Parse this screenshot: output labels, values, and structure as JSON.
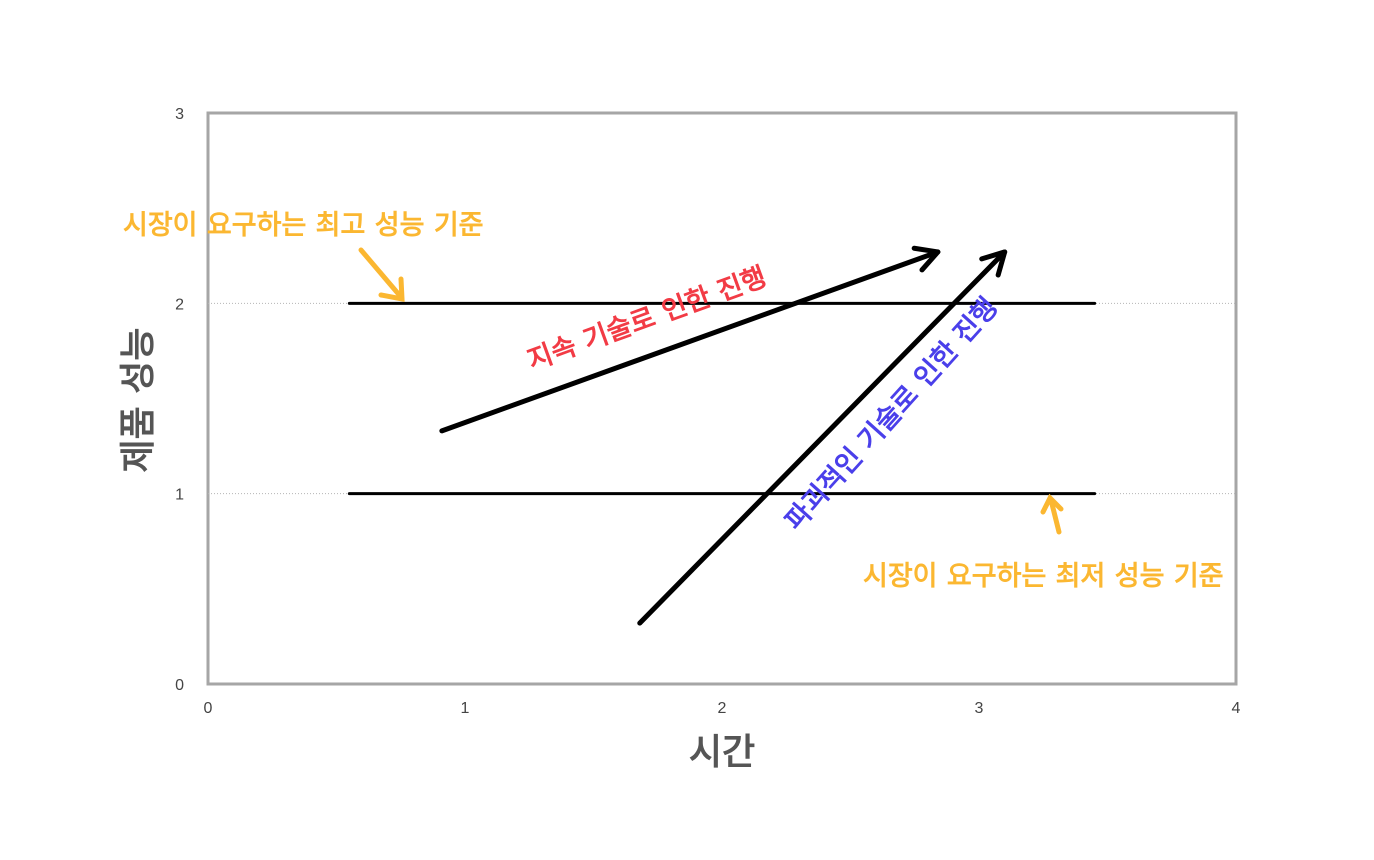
{
  "chart_data": {
    "type": "line",
    "xlabel": "시간",
    "ylabel": "제품 성능",
    "xlim": [
      0,
      4
    ],
    "ylim": [
      0,
      3
    ],
    "x_ticks": [
      "0",
      "1",
      "2",
      "3",
      "4"
    ],
    "y_ticks": [
      "0",
      "1",
      "2",
      "3"
    ],
    "grid": "horizontal dotted at y=1 and y=2",
    "series": [
      {
        "x": [
          0.55,
          3.45
        ],
        "y": [
          2,
          2
        ],
        "color": "#000000"
      },
      {
        "x": [
          0.55,
          3.45
        ],
        "y": [
          1,
          1
        ],
        "color": "#000000"
      },
      {
        "x": [
          0.91,
          2.84
        ],
        "y": [
          1.33,
          2.27
        ],
        "color": "#000000",
        "arrow": true
      },
      {
        "x": [
          1.68,
          3.1
        ],
        "y": [
          0.32,
          2.27
        ],
        "color": "#000000",
        "arrow": true
      }
    ],
    "annotations": [
      {
        "text": "시장이 요구하는 최고 성능 기준",
        "color": "#FBB731"
      },
      {
        "text": "시장이 요구하는 최저 성능 기준",
        "color": "#FBB731"
      },
      {
        "text": "지속 기술로 인한 진행",
        "color": "#F23B45"
      },
      {
        "text": "파괴적인 기술로 인한 진행",
        "color": "#4A3FEA"
      }
    ]
  }
}
